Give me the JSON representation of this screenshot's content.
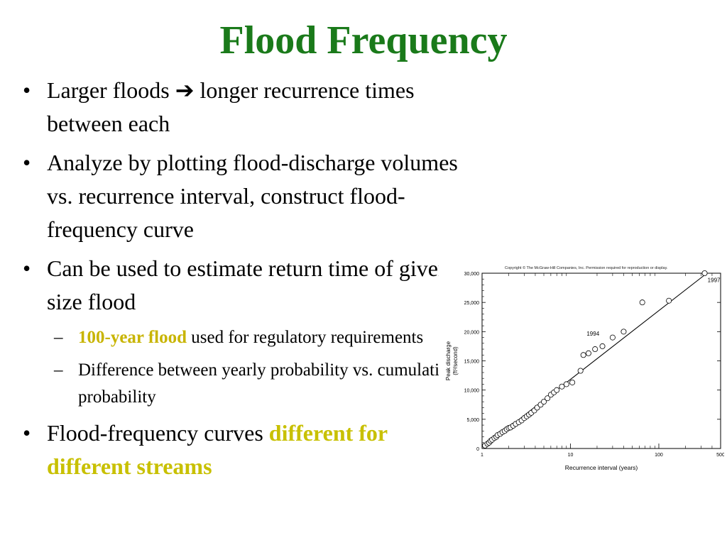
{
  "slide": {
    "title": "Flood Frequency",
    "colors": {
      "title": "#1a7a1a",
      "highlight_sub": "#c8b400",
      "highlight_main": "#c8c000",
      "text": "#000000"
    },
    "bullets": [
      {
        "pre": "Larger floods ",
        "arrow": "➔",
        "post": " longer recurrence times between each"
      },
      {
        "text": "Analyze by plotting flood-discharge volumes vs. recurrence interval, construct flood-frequency curve"
      },
      {
        "text": "Can be used to estimate return time of given size flood",
        "sub": [
          {
            "highlight": "100-year flood",
            "text": " used for regulatory requirements"
          },
          {
            "text": "Difference between yearly probability vs. cumulative probability"
          }
        ]
      },
      {
        "pre": "Flood-frequency curves ",
        "highlight": "different for different streams"
      }
    ]
  },
  "chart_data": {
    "type": "scatter",
    "copyright": "Copyright © The McGraw-Hill Companies, Inc. Permission required for reproduction or display.",
    "xlabel": "Recurrence interval (years)",
    "ylabel_line1": "Peak discharge",
    "ylabel_line2": "(ft³/second)",
    "x_scale": "log",
    "xlim": [
      1,
      500
    ],
    "ylim": [
      0,
      30000
    ],
    "x_ticks": [
      {
        "v": 1,
        "label": "1"
      },
      {
        "v": 10,
        "label": "10"
      },
      {
        "v": 100,
        "label": "100"
      },
      {
        "v": 500,
        "label": "500"
      }
    ],
    "y_ticks": [
      {
        "v": 0,
        "label": "0"
      },
      {
        "v": 5000,
        "label": "5,000"
      },
      {
        "v": 10000,
        "label": "10,000"
      },
      {
        "v": 15000,
        "label": "15,000"
      },
      {
        "v": 20000,
        "label": "20,000"
      },
      {
        "v": 25000,
        "label": "25,000"
      },
      {
        "v": 30000,
        "label": "30,000"
      }
    ],
    "annotations": [
      {
        "label": "1994",
        "x": 18,
        "y": 19300
      },
      {
        "label": "1997",
        "x": 420,
        "y": 28500
      }
    ],
    "fit_line": {
      "x": [
        1.05,
        350
      ],
      "y": [
        300,
        30000
      ]
    },
    "points": [
      {
        "x": 1.08,
        "y": 500
      },
      {
        "x": 1.15,
        "y": 800
      },
      {
        "x": 1.2,
        "y": 1000
      },
      {
        "x": 1.25,
        "y": 1300
      },
      {
        "x": 1.3,
        "y": 1500
      },
      {
        "x": 1.38,
        "y": 1800
      },
      {
        "x": 1.45,
        "y": 2000
      },
      {
        "x": 1.5,
        "y": 2300
      },
      {
        "x": 1.6,
        "y": 2500
      },
      {
        "x": 1.7,
        "y": 2800
      },
      {
        "x": 1.8,
        "y": 3000
      },
      {
        "x": 1.9,
        "y": 3300
      },
      {
        "x": 2.0,
        "y": 3500
      },
      {
        "x": 2.1,
        "y": 3600
      },
      {
        "x": 2.25,
        "y": 3900
      },
      {
        "x": 2.4,
        "y": 4200
      },
      {
        "x": 2.6,
        "y": 4500
      },
      {
        "x": 2.8,
        "y": 4800
      },
      {
        "x": 3.0,
        "y": 5200
      },
      {
        "x": 3.2,
        "y": 5500
      },
      {
        "x": 3.4,
        "y": 5800
      },
      {
        "x": 3.6,
        "y": 6100
      },
      {
        "x": 3.9,
        "y": 6500
      },
      {
        "x": 4.2,
        "y": 7000
      },
      {
        "x": 4.6,
        "y": 7500
      },
      {
        "x": 5.0,
        "y": 8000
      },
      {
        "x": 5.5,
        "y": 8600
      },
      {
        "x": 6.0,
        "y": 9200
      },
      {
        "x": 6.5,
        "y": 9600
      },
      {
        "x": 7.0,
        "y": 10000
      },
      {
        "x": 8.0,
        "y": 10600
      },
      {
        "x": 9.0,
        "y": 11000
      },
      {
        "x": 10.5,
        "y": 11300
      },
      {
        "x": 13,
        "y": 13300
      },
      {
        "x": 14,
        "y": 16000
      },
      {
        "x": 16,
        "y": 16300
      },
      {
        "x": 19,
        "y": 17000
      },
      {
        "x": 23,
        "y": 17500
      },
      {
        "x": 30,
        "y": 19000
      },
      {
        "x": 40,
        "y": 20000
      },
      {
        "x": 65,
        "y": 25000
      },
      {
        "x": 130,
        "y": 25300
      },
      {
        "x": 330,
        "y": 30000
      }
    ]
  }
}
